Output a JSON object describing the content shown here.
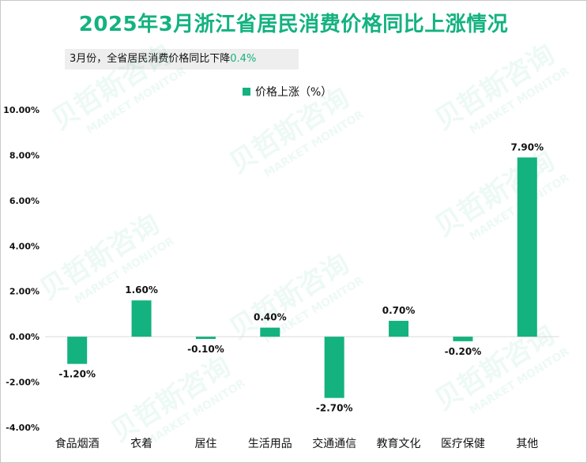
{
  "chart_data": {
    "type": "bar",
    "title": "2025年3月浙江省居民消费价格同比上涨情况",
    "subtitle_prefix": "3月份，全省居民消费价格同比下降",
    "subtitle_value": "0.4%",
    "legend": "价格上涨（%）",
    "categories": [
      "食品烟酒",
      "衣着",
      "居住",
      "生活用品",
      "交通通信",
      "教育文化",
      "医疗保健",
      "其他"
    ],
    "values": [
      -1.2,
      1.6,
      -0.1,
      0.4,
      -2.7,
      0.7,
      -0.2,
      7.9
    ],
    "data_labels": [
      "-1.20%",
      "1.60%",
      "-0.10%",
      "0.40%",
      "-2.70%",
      "0.70%",
      "-0.20%",
      "7.90%"
    ],
    "yticks": [
      10,
      8,
      6,
      4,
      2,
      0,
      -2,
      -4
    ],
    "ytick_labels": [
      "10.00%",
      "8.00%",
      "6.00%",
      "4.00%",
      "2.00%",
      "0.00%",
      "-2.00%",
      "-4.00%"
    ],
    "ylim": [
      -4,
      10
    ],
    "xlabel": "",
    "ylabel": "",
    "grid": false,
    "legend_position": "top-center",
    "bar_color": "#13b27e"
  },
  "watermark": {
    "brand": "贝哲斯咨询",
    "tagline": "MARKET MONITOR"
  }
}
